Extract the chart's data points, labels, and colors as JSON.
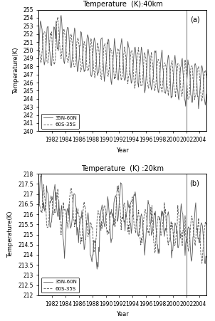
{
  "title_a": "Temperature  (K):40km",
  "title_b": "Temperature  (K) :20km",
  "ylabel": "Temperature(K)",
  "xlabel": "Year",
  "label_north": "35N-60N",
  "label_south": "60S-35S",
  "vline_x": 2002,
  "panel_a": {
    "ylim": [
      240,
      255
    ],
    "yticks": [
      240,
      241,
      242,
      243,
      244,
      245,
      246,
      247,
      248,
      249,
      250,
      251,
      252,
      253,
      254,
      255
    ],
    "annotation": "(a)"
  },
  "panel_b": {
    "ylim": [
      212,
      218
    ],
    "yticks": [
      212,
      212.5,
      213,
      213.5,
      214,
      214.5,
      215,
      215.5,
      216,
      216.5,
      217,
      217.5,
      218
    ],
    "annotation": "(b)"
  },
  "xlim": [
    1980,
    2005
  ],
  "xticks": [
    1982,
    1984,
    1986,
    1988,
    1990,
    1992,
    1994,
    1996,
    1998,
    2000,
    2002,
    2004
  ],
  "line_color": "#555555",
  "vline_color": "#888888",
  "bg_color": "#ffffff"
}
